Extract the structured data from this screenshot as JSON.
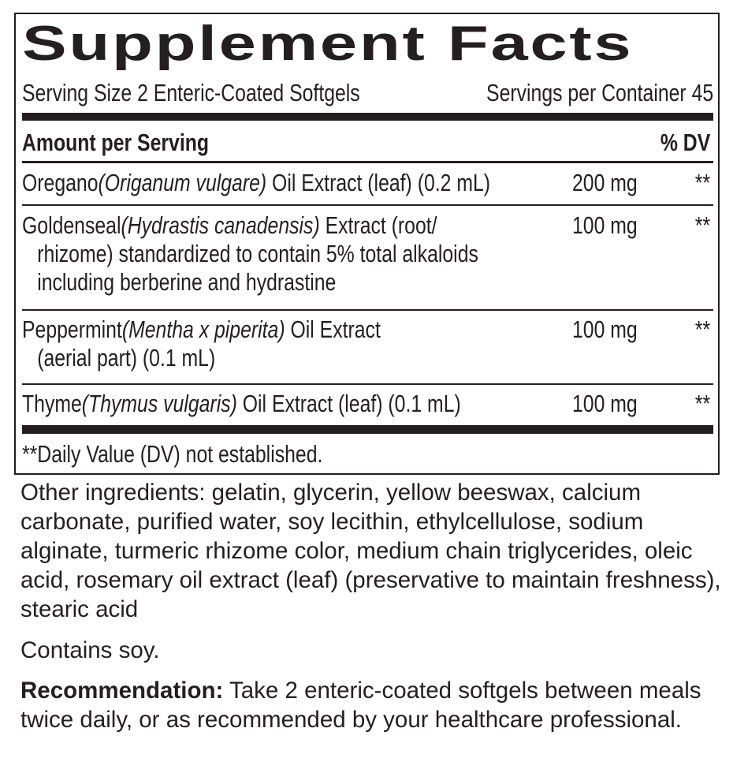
{
  "title": "Supplement Facts",
  "serving_size": "Serving Size 2 Enteric-Coated Softgels",
  "servings_per_container": "Servings per Container 45",
  "header": {
    "amount": "Amount per Serving",
    "dv": "% DV"
  },
  "rows": [
    {
      "name": "Oregano",
      "latin": "(Origanum vulgare)",
      "rest": " Oil Extract (leaf) (0.2 mL)",
      "cont": [],
      "amount": "200 mg",
      "dv": "**"
    },
    {
      "name": "Goldenseal",
      "latin": "(Hydrastis canadensis)",
      "rest": " Extract (root/",
      "cont": [
        "rhizome) standardized to contain 5% total alkaloids",
        "including berberine and hydrastine"
      ],
      "amount": "100 mg",
      "dv": "**"
    },
    {
      "name": "Peppermint",
      "latin": "(Mentha x piperita)",
      "rest": " Oil Extract",
      "cont": [
        "(aerial part) (0.1 mL)"
      ],
      "amount": "100 mg",
      "dv": "**"
    },
    {
      "name": "Thyme",
      "latin": "(Thymus vulgaris)",
      "rest": " Oil Extract (leaf) (0.1 mL)",
      "cont": [],
      "amount": "100 mg",
      "dv": "**"
    }
  ],
  "footnote": "**Daily Value (DV) not established.",
  "other_ingredients": "Other ingredients: gelatin, glycerin, yellow beeswax, calcium carbonate, purified water, soy lecithin, ethylcellulose, sodium alginate, turmeric rhizome color, medium chain triglycerides, oleic acid, rosemary oil extract (leaf) (preservative to maintain freshness), stearic acid",
  "allergen": "Contains soy.",
  "recommendation": {
    "label": "Recommendation:",
    "text": " Take 2 enteric-coated softgels between meals twice daily, or as recommended by your healthcare professional."
  }
}
